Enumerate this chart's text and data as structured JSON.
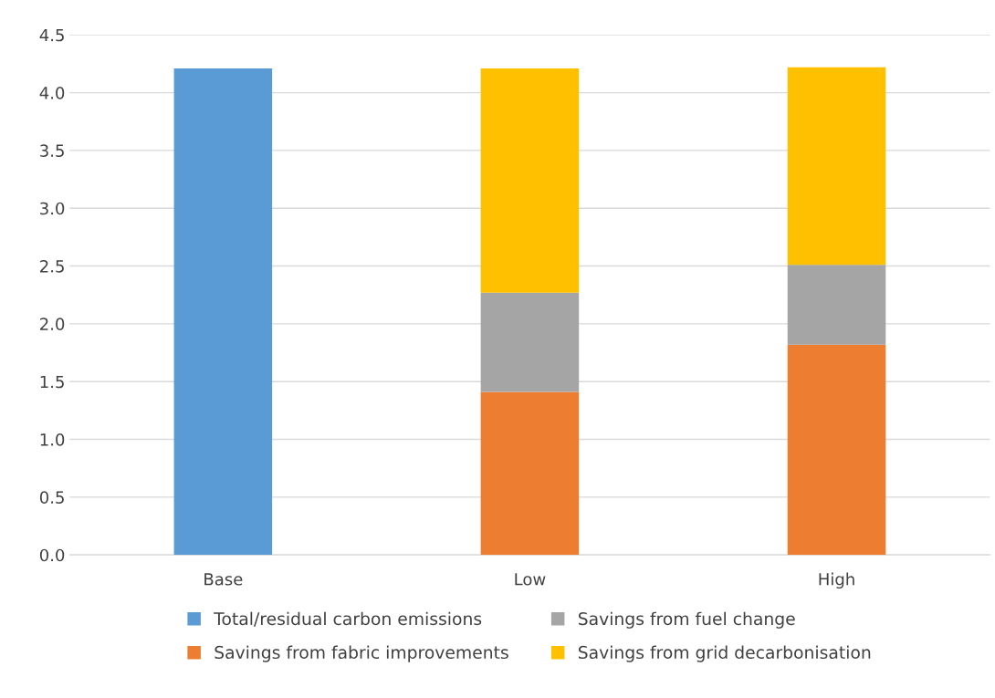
{
  "chart_data": {
    "type": "bar",
    "stacked": true,
    "categories": [
      "Base",
      "Low",
      "High"
    ],
    "series": [
      {
        "name": "Total/residual carbon emissions",
        "color": "#5b9bd5",
        "values": [
          4.21,
          null,
          null
        ]
      },
      {
        "name": "Savings from fabric improvements",
        "color": "#ed7d31",
        "values": [
          null,
          1.41,
          1.82
        ]
      },
      {
        "name": "Savings from fuel change",
        "color": "#a5a5a5",
        "values": [
          null,
          0.86,
          0.69
        ]
      },
      {
        "name": "Savings from grid decarbonisation",
        "color": "#ffc000",
        "values": [
          null,
          1.94,
          1.71
        ]
      }
    ],
    "ylim": [
      0,
      4.5
    ],
    "yticks": [
      {
        "value": 0,
        "label": "0.0"
      },
      {
        "value": 0.5,
        "label": "0.5"
      },
      {
        "value": 1,
        "label": "1.0"
      },
      {
        "value": 1.5,
        "label": "1.5"
      },
      {
        "value": 2,
        "label": "2.0"
      },
      {
        "value": 2.5,
        "label": "2.5"
      },
      {
        "value": 3,
        "label": "3.0"
      },
      {
        "value": 3.5,
        "label": "3.5"
      },
      {
        "value": 4,
        "label": "4.0"
      },
      {
        "value": 4.5,
        "label": "4.5"
      }
    ],
    "grid": "y",
    "legend": "bottom"
  }
}
